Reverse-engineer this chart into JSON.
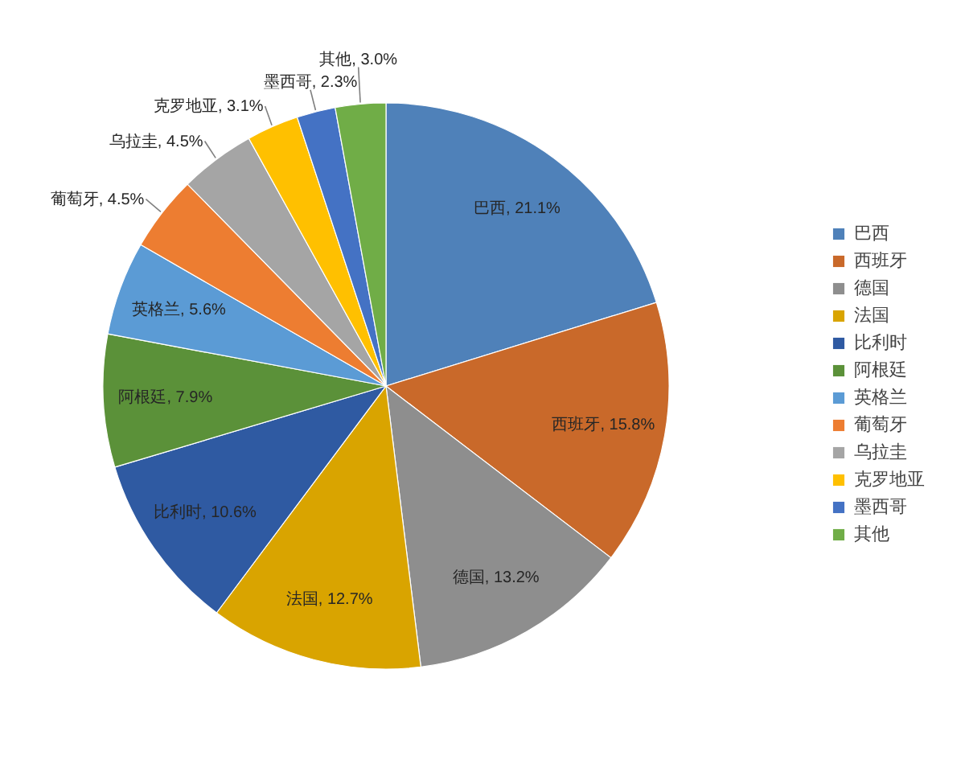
{
  "chart_data": {
    "type": "pie",
    "categories": [
      "巴西",
      "西班牙",
      "德国",
      "法国",
      "比利时",
      "阿根廷",
      "英格兰",
      "葡萄牙",
      "乌拉圭",
      "克罗地亚",
      "墨西哥",
      "其他"
    ],
    "values": [
      21.1,
      15.8,
      13.2,
      12.7,
      10.6,
      7.9,
      5.6,
      4.5,
      4.5,
      3.1,
      2.3,
      3.0
    ],
    "colors": [
      "#4f81b9",
      "#c9692a",
      "#8e8e8e",
      "#d9a400",
      "#2f5aa2",
      "#5b9139",
      "#5b9bd5",
      "#ed7d31",
      "#a5a5a5",
      "#ffc000",
      "#4472c4",
      "#70ad47"
    ],
    "value_labels": [
      "巴西, 21.1%",
      "西班牙, 15.8%",
      "德国, 13.2%",
      "法国, 12.7%",
      "比利时, 10.6%",
      "阿根廷, 7.9%",
      "英格兰, 5.6%",
      "葡萄牙, 4.5%",
      "乌拉圭, 4.5%",
      "克罗地亚, 3.1%",
      "墨西哥, 2.3%",
      "其他, 3.0%"
    ],
    "legend": "right"
  }
}
